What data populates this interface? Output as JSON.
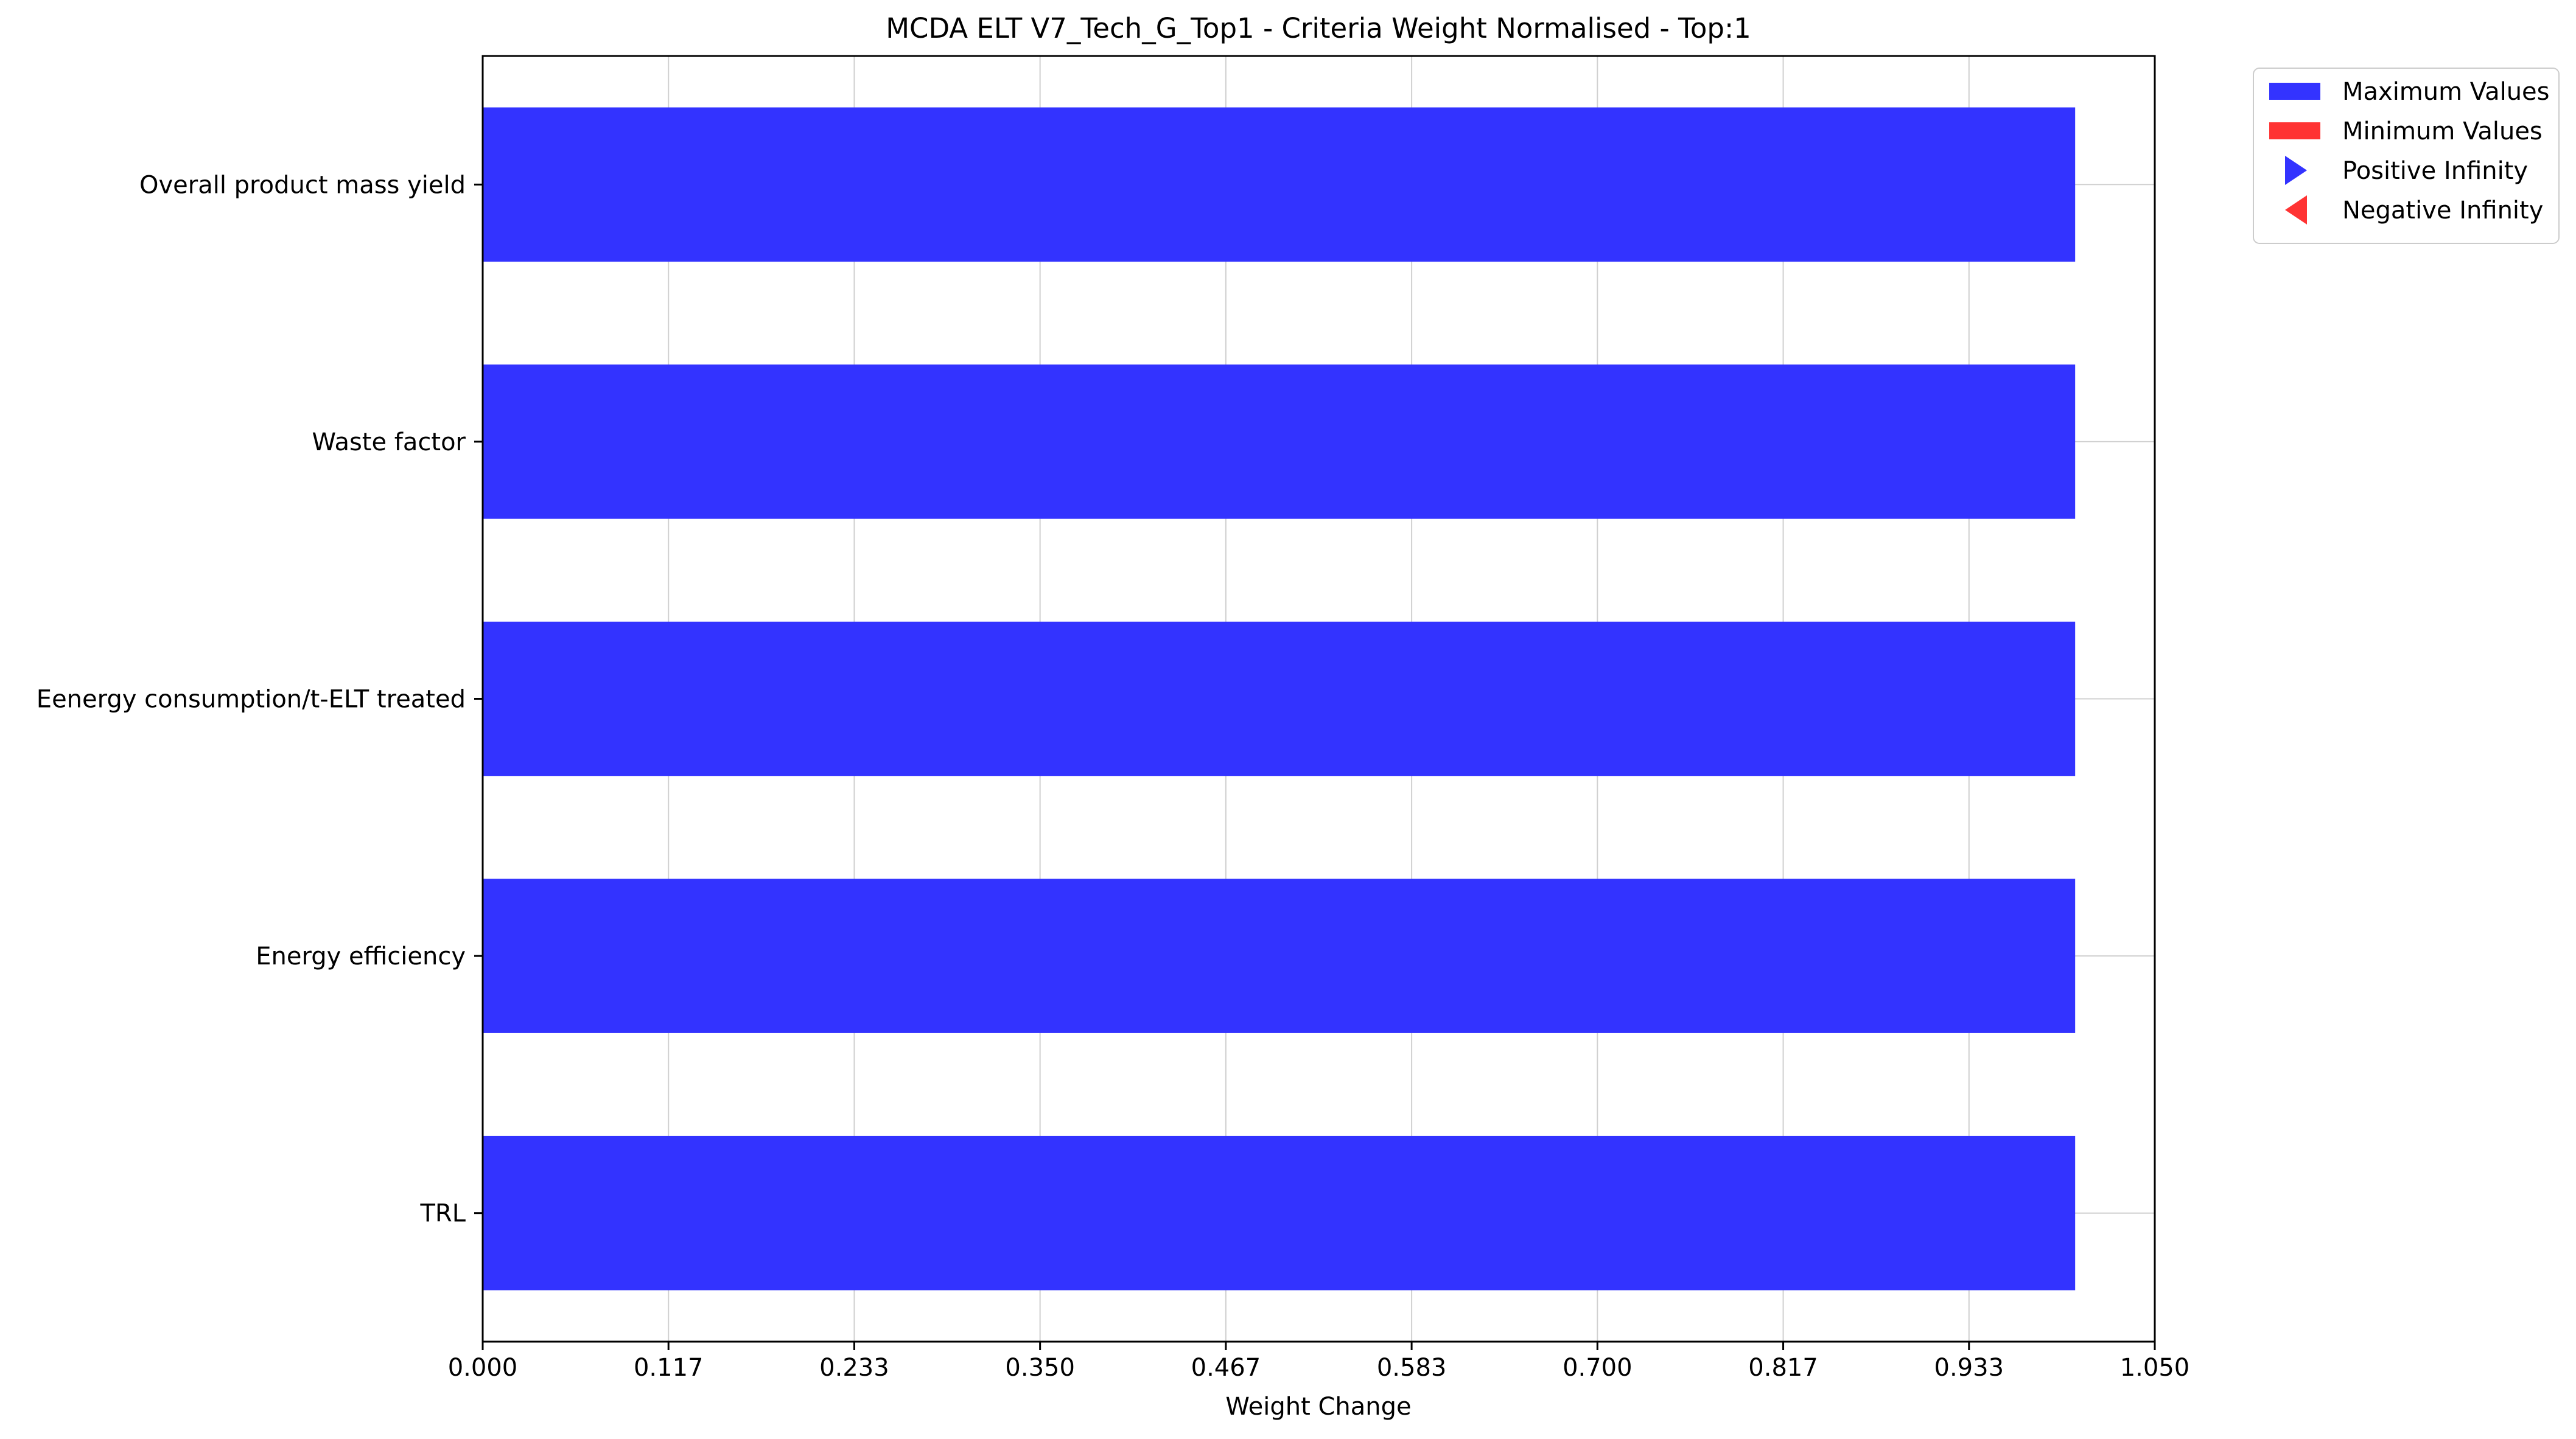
{
  "chart_data": {
    "type": "bar",
    "orientation": "horizontal",
    "title": "MCDA ELT V7_Tech_G_Top1 - Criteria Weight Normalised - Top:1",
    "xlabel": "Weight Change",
    "ylabel": "",
    "xlim": [
      0,
      1.05
    ],
    "xticks": [
      "0.000",
      "0.117",
      "0.233",
      "0.350",
      "0.467",
      "0.583",
      "0.700",
      "0.817",
      "0.933",
      "1.050"
    ],
    "grid": true,
    "legend_position": "outside-top-right",
    "categories": [
      "TRL",
      "Energy efficiency",
      "Eenergy consumption/t-ELT treated",
      "Waste factor",
      "Overall product mass yield"
    ],
    "series": [
      {
        "name": "Maximum Values",
        "color": "#3333ff",
        "values": [
          1.0,
          1.0,
          1.0,
          1.0,
          1.0
        ]
      },
      {
        "name": "Minimum Values",
        "color": "#ff3333",
        "values": [
          0,
          0,
          0,
          0,
          0
        ]
      }
    ],
    "legend": [
      {
        "label": "Maximum Values",
        "marker": "rect",
        "color": "#3333ff"
      },
      {
        "label": "Minimum Values",
        "marker": "rect",
        "color": "#ff3333"
      },
      {
        "label": "Positive Infinity",
        "marker": "triangle-right",
        "color": "#3333ff"
      },
      {
        "label": "Negative Infinity",
        "marker": "triangle-left",
        "color": "#ff3333"
      }
    ]
  }
}
